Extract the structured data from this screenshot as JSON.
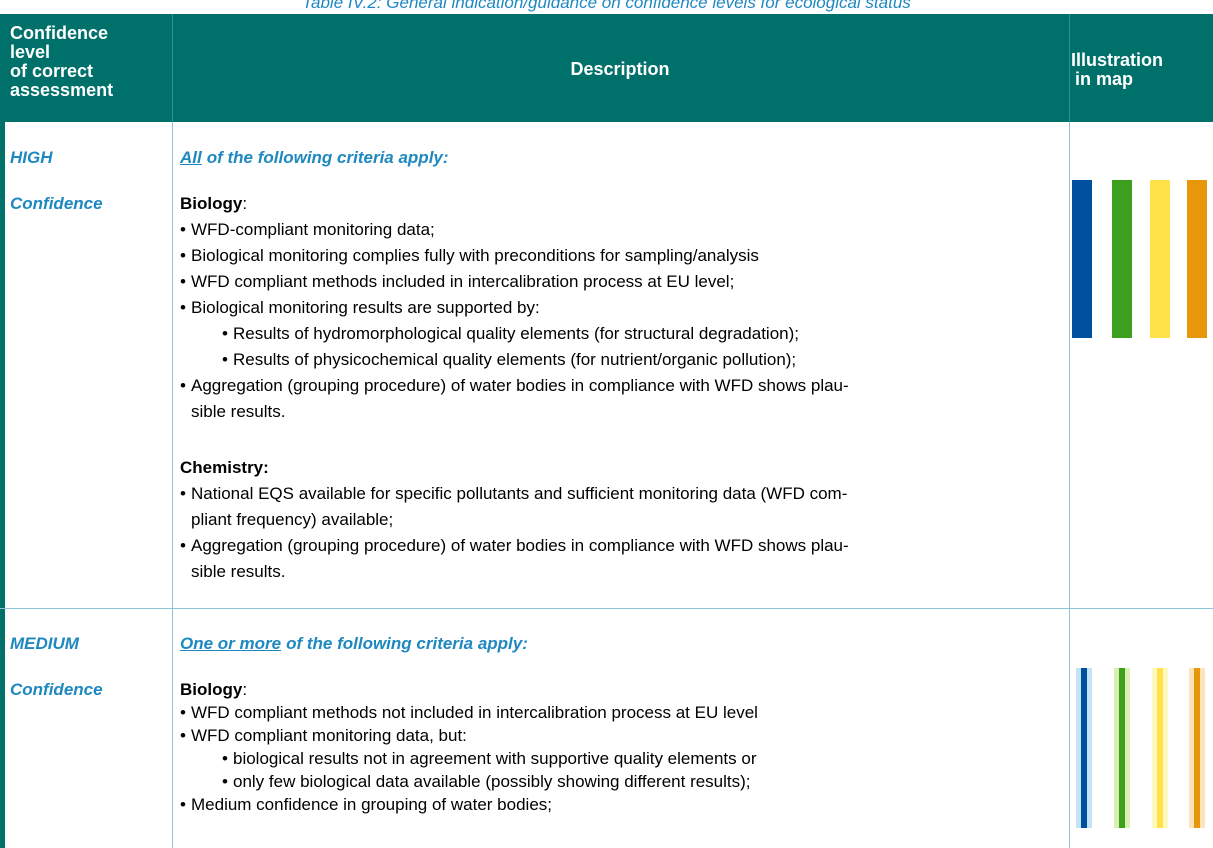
{
  "caption": "Table IV.2: General indication/guidance on confidence levels for ecological status",
  "header": {
    "level": [
      "Confidence",
      "level",
      "of correct",
      "assessment"
    ],
    "description": "Description",
    "illustration": [
      "Illustration",
      "in map"
    ]
  },
  "rows": [
    {
      "level": "HIGH",
      "level2": "Confidence",
      "intro_emph": "All",
      "intro_rest": "of the following criteria apply:",
      "sections": [
        {
          "heading": "Biology",
          "suffix": ":",
          "items": [
            {
              "lines": [
                "WFD-compliant monitoring data;"
              ]
            },
            {
              "lines": [
                "Biological monitoring complies fully with preconditions for sampling/analysis"
              ]
            },
            {
              "lines": [
                "WFD compliant methods included in intercalibration process at EU level;"
              ]
            },
            {
              "lines": [
                "Biological monitoring results are supported by:"
              ],
              "sub": [
                "Results of hydromorphological quality elements (for structural degradation);",
                "Results of physicochemical quality elements (for nutrient/organic pollution);"
              ]
            },
            {
              "lines": [
                "Aggregation (grouping procedure) of water bodies in compliance with WFD shows plau-",
                "sible results."
              ]
            }
          ]
        },
        {
          "heading": "Chemistry:",
          "items": [
            {
              "lines": [
                "National EQS available for specific pollutants and sufficient monitoring data (WFD com-",
                "pliant frequency) available;"
              ]
            },
            {
              "lines": [
                "Aggregation (grouping procedure) of water bodies in compliance with WFD shows plau-",
                "sible results."
              ]
            }
          ]
        }
      ]
    },
    {
      "level": "MEDIUM",
      "level2": "Confidence",
      "intro_emph": "One or more",
      "intro_rest": "of the following criteria apply:",
      "sections": [
        {
          "heading": "Biology",
          "suffix": ":",
          "items": [
            {
              "lines": [
                "WFD compliant methods not included in intercalibration process at EU level"
              ]
            },
            {
              "lines": [
                "WFD compliant monitoring data, but:"
              ],
              "sub": [
                "biological results not in agreement with supportive quality elements or",
                "only few biological data available (possibly showing different results);"
              ]
            },
            {
              "lines": [
                "Medium confidence in grouping of water bodies;"
              ]
            }
          ]
        }
      ]
    }
  ]
}
